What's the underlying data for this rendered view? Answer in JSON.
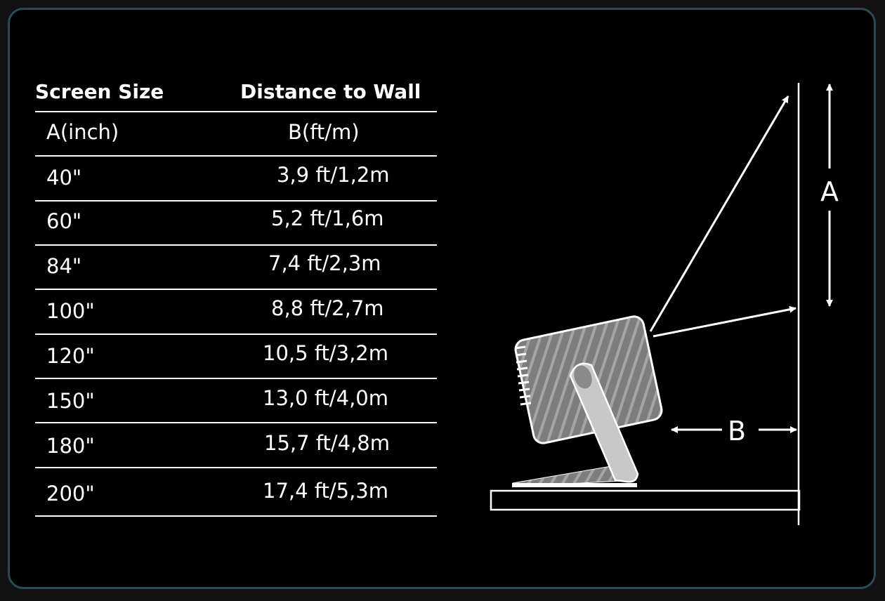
{
  "table": {
    "headers": [
      "Screen Size",
      "Distance to Wall"
    ],
    "subheaders": [
      "A(inch)",
      "B(ft/m)"
    ],
    "rows": [
      [
        "40\"",
        "3,9 ft/1,2m"
      ],
      [
        "60\"",
        "5,2 ft/1,6m"
      ],
      [
        "84\"",
        "7,4 ft/2,3m"
      ],
      [
        "100\"",
        "8,8 ft/2,7m"
      ],
      [
        "120\"",
        "10,5 ft/3,2m"
      ],
      [
        "150\"",
        "13,0 ft/4,0m"
      ],
      [
        "180\"",
        "15,7 ft/4,8m"
      ],
      [
        "200\"",
        "17,4 ft/5,3m"
      ]
    ]
  },
  "diagram": {
    "label_a": "A",
    "label_b": "B"
  },
  "colors": {
    "frame_border": "#2c4b51",
    "background": "#000000",
    "foreground": "#ffffff",
    "projector": "#8a8a8a",
    "stand": "#c8c8c8"
  }
}
